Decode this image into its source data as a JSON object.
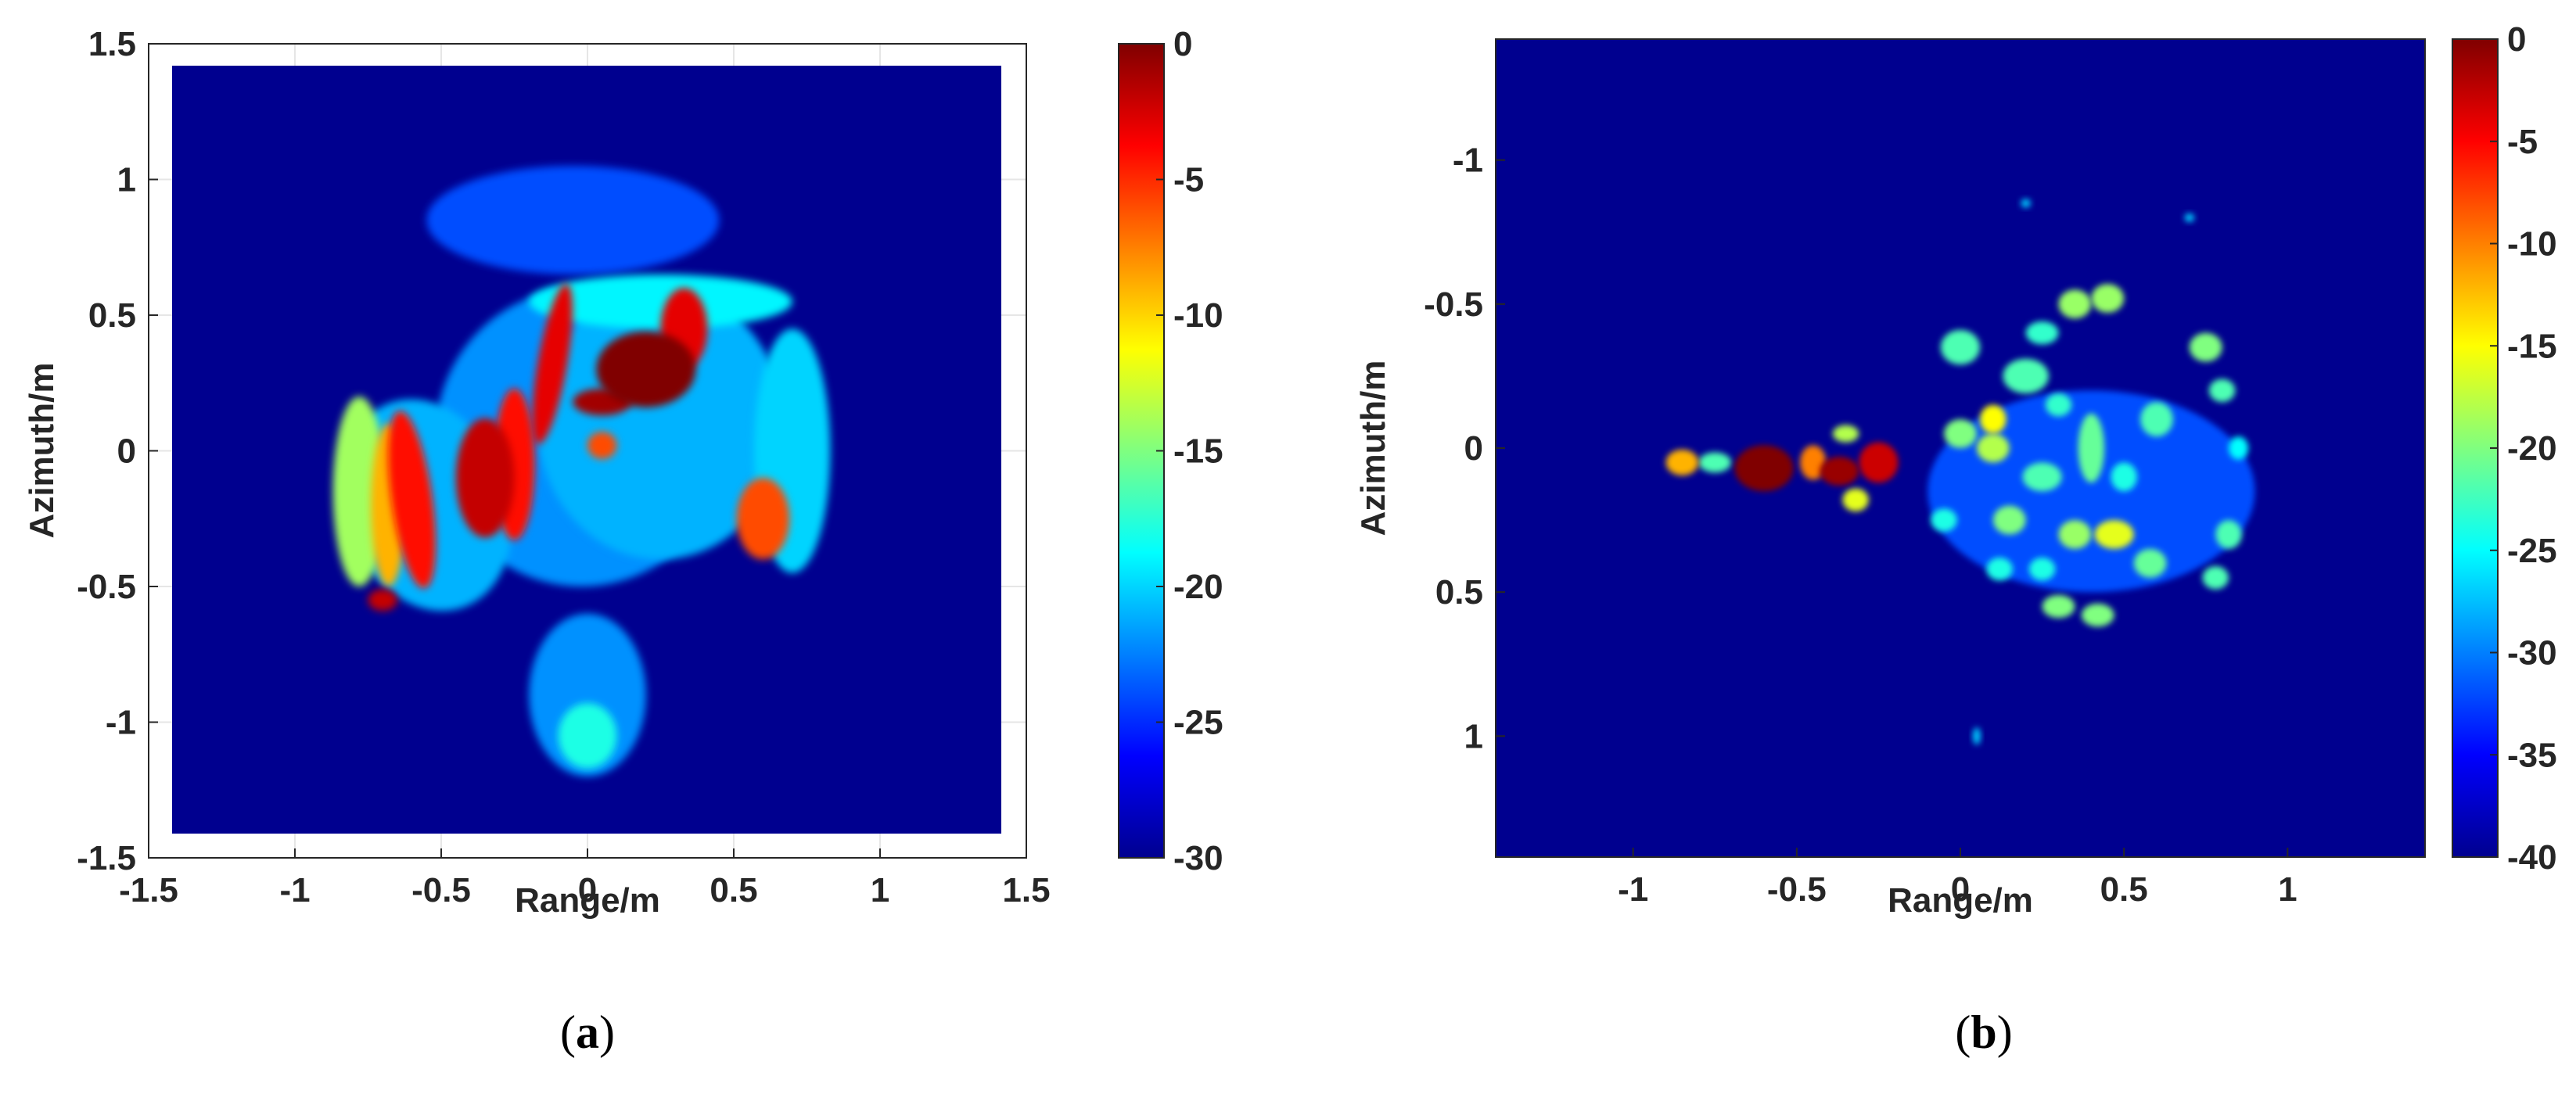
{
  "figure": {
    "captions": [
      {
        "open": "(",
        "letter": "a",
        "close": ")"
      },
      {
        "open": "(",
        "letter": "b",
        "close": ")"
      }
    ]
  },
  "chart_data": [
    {
      "type": "heatmap",
      "panel": "a",
      "xlabel": "Range/m",
      "ylabel": "Azimuth/m",
      "xlim": [
        -1.5,
        1.5
      ],
      "ylim": [
        -1.5,
        1.5
      ],
      "y_direction": "normal",
      "xticks": [
        -1.5,
        -1,
        -0.5,
        0,
        0.5,
        1,
        1.5
      ],
      "xtick_labels": [
        "-1.5",
        "-1",
        "-0.5",
        "0",
        "0.5",
        "1",
        "1.5"
      ],
      "yticks": [
        1.5,
        1,
        0.5,
        0,
        -0.5,
        -1,
        -1.5
      ],
      "ytick_labels": [
        "1.5",
        "1",
        "0.5",
        "0",
        "-0.5",
        "-1",
        "-1.5"
      ],
      "image_extent": {
        "x": [
          -1.42,
          1.42
        ],
        "y": [
          -1.42,
          1.42
        ]
      },
      "grid": true,
      "colormap": "jet",
      "colorbar": {
        "range": [
          -30,
          0
        ],
        "ticks": [
          0,
          -5,
          -10,
          -15,
          -20,
          -25,
          -30
        ],
        "tick_labels": [
          "0",
          "-5",
          "-10",
          "-15",
          "-20",
          "-25",
          "-30"
        ]
      },
      "background_level_db": -30,
      "blobs": [
        {
          "x": -0.02,
          "y": 0.05,
          "rx": 0.5,
          "ry": 0.55,
          "rot": 0,
          "db": -22
        },
        {
          "x": 0.25,
          "y": 0.1,
          "rx": 0.42,
          "ry": 0.5,
          "rot": 0,
          "db": -21
        },
        {
          "x": -0.55,
          "y": -0.2,
          "rx": 0.28,
          "ry": 0.4,
          "rot": -20,
          "db": -21
        },
        {
          "x": 0.7,
          "y": 0.0,
          "rx": 0.13,
          "ry": 0.45,
          "rot": 0,
          "db": -20
        },
        {
          "x": -0.05,
          "y": 0.85,
          "rx": 0.5,
          "ry": 0.2,
          "rot": 0,
          "db": -24
        },
        {
          "x": 0.0,
          "y": -0.9,
          "rx": 0.2,
          "ry": 0.3,
          "rot": 0,
          "db": -22
        },
        {
          "x": 0.25,
          "y": 0.55,
          "rx": 0.45,
          "ry": 0.1,
          "rot": 0,
          "db": -19
        },
        {
          "x": -0.78,
          "y": -0.15,
          "rx": 0.09,
          "ry": 0.35,
          "rot": 0,
          "db": -14
        },
        {
          "x": -0.68,
          "y": -0.2,
          "rx": 0.06,
          "ry": 0.3,
          "rot": 0,
          "db": -9
        },
        {
          "x": -0.6,
          "y": -0.18,
          "rx": 0.07,
          "ry": 0.33,
          "rot": -8,
          "db": -4
        },
        {
          "x": -0.35,
          "y": -0.1,
          "rx": 0.1,
          "ry": 0.22,
          "rot": 0,
          "db": -2
        },
        {
          "x": -0.25,
          "y": -0.05,
          "rx": 0.07,
          "ry": 0.28,
          "rot": 0,
          "db": -4
        },
        {
          "x": -0.12,
          "y": 0.32,
          "rx": 0.05,
          "ry": 0.3,
          "rot": 10,
          "db": -3
        },
        {
          "x": 0.2,
          "y": 0.3,
          "rx": 0.17,
          "ry": 0.14,
          "rot": 0,
          "db": 0
        },
        {
          "x": 0.05,
          "y": 0.18,
          "rx": 0.1,
          "ry": 0.05,
          "rot": 0,
          "db": -1
        },
        {
          "x": 0.33,
          "y": 0.45,
          "rx": 0.08,
          "ry": 0.15,
          "rot": 0,
          "db": -3
        },
        {
          "x": 0.6,
          "y": -0.25,
          "rx": 0.09,
          "ry": 0.15,
          "rot": 0,
          "db": -6
        },
        {
          "x": 0.05,
          "y": 0.02,
          "rx": 0.05,
          "ry": 0.05,
          "rot": 0,
          "db": -6
        },
        {
          "x": -0.7,
          "y": -0.55,
          "rx": 0.05,
          "ry": 0.04,
          "rot": 0,
          "db": -2
        },
        {
          "x": 0.0,
          "y": -1.05,
          "rx": 0.1,
          "ry": 0.12,
          "rot": 0,
          "db": -18
        }
      ]
    },
    {
      "type": "heatmap",
      "panel": "b",
      "xlabel": "Range/m",
      "ylabel": "Azimuth/m",
      "xlim": [
        -1.42,
        1.42
      ],
      "ylim": [
        -1.42,
        1.42
      ],
      "y_direction": "reversed",
      "xticks": [
        -1,
        -0.5,
        0,
        0.5,
        1
      ],
      "xtick_labels": [
        "-1",
        "-0.5",
        "0",
        "0.5",
        "1"
      ],
      "yticks": [
        -1,
        -0.5,
        0,
        0.5,
        1
      ],
      "ytick_labels": [
        "-1",
        "-0.5",
        "0",
        "0.5",
        "1"
      ],
      "image_extent": {
        "x": [
          -1.42,
          1.42
        ],
        "y": [
          -1.42,
          1.42
        ]
      },
      "grid": false,
      "colormap": "jet",
      "colorbar": {
        "range": [
          -40,
          0
        ],
        "ticks": [
          0,
          -5,
          -10,
          -15,
          -20,
          -25,
          -30,
          -35,
          -40
        ],
        "tick_labels": [
          "0",
          "-5",
          "-10",
          "-15",
          "-20",
          "-25",
          "-30",
          "-35",
          "-40"
        ]
      },
      "background_level_db": -40,
      "blobs": [
        {
          "x": -0.85,
          "y": 0.05,
          "rx": 0.05,
          "ry": 0.045,
          "rot": 0,
          "db": -12
        },
        {
          "x": -0.75,
          "y": 0.05,
          "rx": 0.05,
          "ry": 0.035,
          "rot": 0,
          "db": -22
        },
        {
          "x": -0.6,
          "y": 0.07,
          "rx": 0.09,
          "ry": 0.08,
          "rot": 0,
          "db": 0
        },
        {
          "x": -0.45,
          "y": 0.05,
          "rx": 0.04,
          "ry": 0.06,
          "rot": 0,
          "db": -10
        },
        {
          "x": -0.37,
          "y": 0.08,
          "rx": 0.06,
          "ry": 0.05,
          "rot": 0,
          "db": -1
        },
        {
          "x": -0.32,
          "y": 0.18,
          "rx": 0.04,
          "ry": 0.04,
          "rot": 0,
          "db": -16
        },
        {
          "x": -0.25,
          "y": 0.05,
          "rx": 0.06,
          "ry": 0.07,
          "rot": 0,
          "db": -3
        },
        {
          "x": -0.35,
          "y": -0.05,
          "rx": 0.04,
          "ry": 0.03,
          "rot": 0,
          "db": -18
        },
        {
          "x": 0.0,
          "y": -0.05,
          "rx": 0.05,
          "ry": 0.05,
          "rot": 0,
          "db": -20
        },
        {
          "x": 0.1,
          "y": -0.1,
          "rx": 0.04,
          "ry": 0.05,
          "rot": 0,
          "db": -15
        },
        {
          "x": 0.2,
          "y": -0.25,
          "rx": 0.07,
          "ry": 0.06,
          "rot": 0,
          "db": -22
        },
        {
          "x": 0.35,
          "y": -0.5,
          "rx": 0.05,
          "ry": 0.05,
          "rot": 0,
          "db": -19
        },
        {
          "x": 0.45,
          "y": -0.52,
          "rx": 0.05,
          "ry": 0.05,
          "rot": 0,
          "db": -19
        },
        {
          "x": 0.25,
          "y": 0.1,
          "rx": 0.06,
          "ry": 0.05,
          "rot": 0,
          "db": -22
        },
        {
          "x": 0.1,
          "y": 0.0,
          "rx": 0.05,
          "ry": 0.05,
          "rot": 0,
          "db": -18
        },
        {
          "x": 0.15,
          "y": 0.25,
          "rx": 0.05,
          "ry": 0.05,
          "rot": 0,
          "db": -20
        },
        {
          "x": 0.35,
          "y": 0.3,
          "rx": 0.05,
          "ry": 0.05,
          "rot": 0,
          "db": -19
        },
        {
          "x": 0.47,
          "y": 0.3,
          "rx": 0.06,
          "ry": 0.05,
          "rot": 0,
          "db": -16
        },
        {
          "x": 0.4,
          "y": 0.0,
          "rx": 0.04,
          "ry": 0.12,
          "rot": 0,
          "db": -21
        },
        {
          "x": 0.3,
          "y": 0.55,
          "rx": 0.05,
          "ry": 0.04,
          "rot": 0,
          "db": -20
        },
        {
          "x": 0.42,
          "y": 0.58,
          "rx": 0.05,
          "ry": 0.04,
          "rot": 0,
          "db": -20
        },
        {
          "x": 0.58,
          "y": 0.4,
          "rx": 0.05,
          "ry": 0.05,
          "rot": 0,
          "db": -21
        },
        {
          "x": 0.6,
          "y": -0.1,
          "rx": 0.05,
          "ry": 0.06,
          "rot": 0,
          "db": -22
        },
        {
          "x": 0.75,
          "y": -0.35,
          "rx": 0.05,
          "ry": 0.05,
          "rot": 0,
          "db": -20
        },
        {
          "x": 0.8,
          "y": -0.2,
          "rx": 0.04,
          "ry": 0.04,
          "rot": 0,
          "db": -22
        },
        {
          "x": 0.82,
          "y": 0.3,
          "rx": 0.04,
          "ry": 0.05,
          "rot": 0,
          "db": -22
        },
        {
          "x": 0.78,
          "y": 0.45,
          "rx": 0.04,
          "ry": 0.04,
          "rot": 0,
          "db": -22
        },
        {
          "x": 0.85,
          "y": 0.0,
          "rx": 0.03,
          "ry": 0.04,
          "rot": 0,
          "db": -25
        },
        {
          "x": 0.0,
          "y": -0.35,
          "rx": 0.06,
          "ry": 0.06,
          "rot": 0,
          "db": -22
        },
        {
          "x": 0.25,
          "y": -0.4,
          "rx": 0.05,
          "ry": 0.04,
          "rot": 0,
          "db": -23
        },
        {
          "x": 0.3,
          "y": -0.15,
          "rx": 0.04,
          "ry": 0.04,
          "rot": 0,
          "db": -23
        },
        {
          "x": 0.12,
          "y": 0.42,
          "rx": 0.04,
          "ry": 0.04,
          "rot": 0,
          "db": -24
        },
        {
          "x": 0.25,
          "y": 0.42,
          "rx": 0.04,
          "ry": 0.04,
          "rot": 0,
          "db": -24
        },
        {
          "x": -0.05,
          "y": 0.25,
          "rx": 0.04,
          "ry": 0.04,
          "rot": 0,
          "db": -24
        },
        {
          "x": 0.5,
          "y": 0.1,
          "rx": 0.04,
          "ry": 0.05,
          "rot": 0,
          "db": -24
        },
        {
          "x": 0.2,
          "y": -0.85,
          "rx": 0.015,
          "ry": 0.015,
          "rot": 0,
          "db": -27
        },
        {
          "x": 0.7,
          "y": -0.8,
          "rx": 0.015,
          "ry": 0.015,
          "rot": 0,
          "db": -27
        },
        {
          "x": 0.05,
          "y": 1.0,
          "rx": 0.012,
          "ry": 0.03,
          "rot": 0,
          "db": -27
        },
        {
          "x": 0.4,
          "y": 0.15,
          "rx": 0.5,
          "ry": 0.35,
          "rot": 0,
          "db": -32
        }
      ]
    }
  ]
}
